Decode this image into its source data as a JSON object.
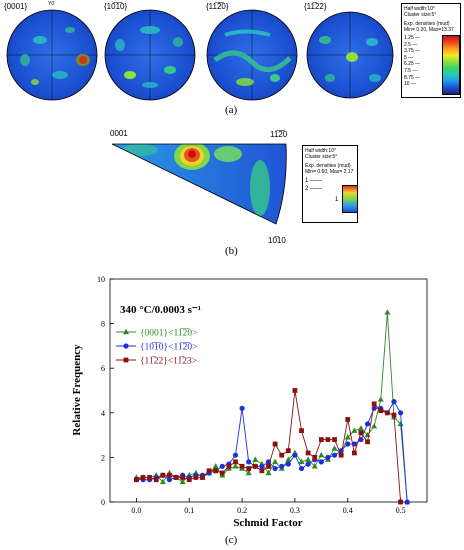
{
  "panel_a": {
    "caption": "(a)",
    "pole_figures": [
      {
        "label": "{0001}",
        "top_label": "Y0"
      },
      {
        "label": "{10̅1̅0}"
      },
      {
        "label": "{11̅2̅0}"
      },
      {
        "label": "{11̅22}"
      }
    ],
    "legend": {
      "lines": [
        "Half width:10°",
        "Cluster size:5°"
      ],
      "heading": "Exp. densities (mud)",
      "range": "Min= 0.20, Max=13.37",
      "levels": [
        "1.25",
        "2.5",
        "3.75",
        "5",
        "6.25",
        "7.5",
        "8.75",
        "10"
      ],
      "colors": [
        "#1a237e",
        "#1e4fd8",
        "#1c9be6",
        "#23c8c2",
        "#3ad36a",
        "#8ee03a",
        "#f0e82a",
        "#f8a21c",
        "#f0461c",
        "#c4141a"
      ]
    }
  },
  "panel_b": {
    "caption": "(b)",
    "corner_labels": {
      "left": "0001",
      "right": "11̅2̅0",
      "bottom": "10̅10"
    },
    "legend": {
      "lines": [
        "Half width:10°",
        "Cluster size:5°"
      ],
      "heading": "Exp. densities (mud)",
      "range": "Min= 0.60, Max= 2.17",
      "levels": [
        "1",
        "2"
      ],
      "bar_label": "1"
    }
  },
  "panel_c": {
    "caption": "(c)"
  },
  "chart_data": {
    "type": "line",
    "title": "340 °C/0.0003 s⁻¹",
    "xlabel": "Schmid Factor",
    "ylabel": "Relative Frequency",
    "xlim": [
      -0.05,
      0.55
    ],
    "ylim": [
      0,
      10
    ],
    "xticks": [
      "0.0",
      "0.1",
      "0.2",
      "0.3",
      "0.4",
      "0.5"
    ],
    "yticks": [
      "0",
      "2",
      "4",
      "6",
      "8",
      "10"
    ],
    "legend_position": "upper-left",
    "series": [
      {
        "name": "{0001}<11̅2̅0>",
        "color": "#2e8b22",
        "marker": "triangle",
        "x": [
          0.0,
          0.0125,
          0.025,
          0.0375,
          0.05,
          0.0625,
          0.075,
          0.0875,
          0.1,
          0.1125,
          0.125,
          0.1375,
          0.15,
          0.1625,
          0.175,
          0.1875,
          0.2,
          0.2125,
          0.225,
          0.2375,
          0.25,
          0.2625,
          0.275,
          0.2875,
          0.3,
          0.3125,
          0.325,
          0.3375,
          0.35,
          0.3625,
          0.375,
          0.3875,
          0.4,
          0.4125,
          0.425,
          0.4375,
          0.45,
          0.4625,
          0.475,
          0.4875,
          0.5,
          0.5125
        ],
        "y": [
          1.1,
          1.1,
          1.1,
          1.2,
          0.9,
          1.3,
          1.1,
          0.9,
          1.2,
          1.3,
          1.1,
          1.3,
          1.6,
          1.2,
          1.5,
          1.6,
          1.5,
          1.3,
          1.9,
          1.7,
          1.3,
          1.8,
          1.5,
          1.9,
          2.2,
          1.8,
          1.9,
          1.6,
          2.1,
          1.9,
          2.4,
          2.2,
          2.9,
          3.2,
          3.3,
          3.0,
          3.4,
          4.6,
          8.5,
          3.8,
          3.5,
          0.0
        ]
      },
      {
        "name": "{10̅1̅0}<11̅2̅0>",
        "color": "#1f2fe0",
        "marker": "circle",
        "x": [
          0.0,
          0.0125,
          0.025,
          0.0375,
          0.05,
          0.0625,
          0.075,
          0.0875,
          0.1,
          0.1125,
          0.125,
          0.1375,
          0.15,
          0.1625,
          0.175,
          0.1875,
          0.2,
          0.2125,
          0.225,
          0.2375,
          0.25,
          0.2625,
          0.275,
          0.2875,
          0.3,
          0.3125,
          0.325,
          0.3375,
          0.35,
          0.3625,
          0.375,
          0.3875,
          0.4,
          0.4125,
          0.425,
          0.4375,
          0.45,
          0.4625,
          0.475,
          0.4875,
          0.5,
          0.5125
        ],
        "y": [
          1.0,
          1.0,
          1.0,
          1.1,
          1.2,
          1.0,
          1.1,
          1.2,
          1.1,
          1.2,
          1.2,
          1.3,
          1.4,
          1.6,
          1.7,
          2.1,
          4.2,
          1.8,
          1.6,
          1.6,
          1.8,
          1.5,
          1.6,
          1.7,
          2.1,
          1.5,
          1.7,
          1.9,
          1.8,
          2.0,
          2.1,
          2.3,
          2.6,
          2.6,
          2.8,
          3.5,
          4.2,
          4.2,
          4.0,
          4.5,
          4.0,
          0.0
        ]
      },
      {
        "name": "{11̅22}<11̅23>",
        "color": "#8b1010",
        "marker": "square",
        "x": [
          0.0,
          0.0125,
          0.025,
          0.0375,
          0.05,
          0.0625,
          0.075,
          0.0875,
          0.1,
          0.1125,
          0.125,
          0.1375,
          0.15,
          0.1625,
          0.175,
          0.1875,
          0.2,
          0.2125,
          0.225,
          0.2375,
          0.25,
          0.2625,
          0.275,
          0.2875,
          0.3,
          0.3125,
          0.325,
          0.3375,
          0.35,
          0.3625,
          0.375,
          0.3875,
          0.4,
          0.4125,
          0.425,
          0.4375,
          0.45,
          0.4625,
          0.475,
          0.4875,
          0.5
        ],
        "y": [
          1.0,
          1.1,
          1.1,
          1.0,
          1.2,
          1.2,
          1.1,
          1.1,
          1.0,
          1.1,
          1.1,
          1.4,
          1.4,
          1.3,
          1.6,
          1.8,
          1.6,
          1.5,
          1.6,
          1.4,
          1.6,
          2.6,
          2.1,
          2.3,
          5.0,
          3.2,
          2.2,
          2.0,
          2.8,
          2.8,
          2.8,
          2.1,
          3.7,
          2.2,
          3.1,
          2.7,
          4.4,
          4.1,
          4.0,
          3.9,
          0.0
        ]
      }
    ]
  }
}
